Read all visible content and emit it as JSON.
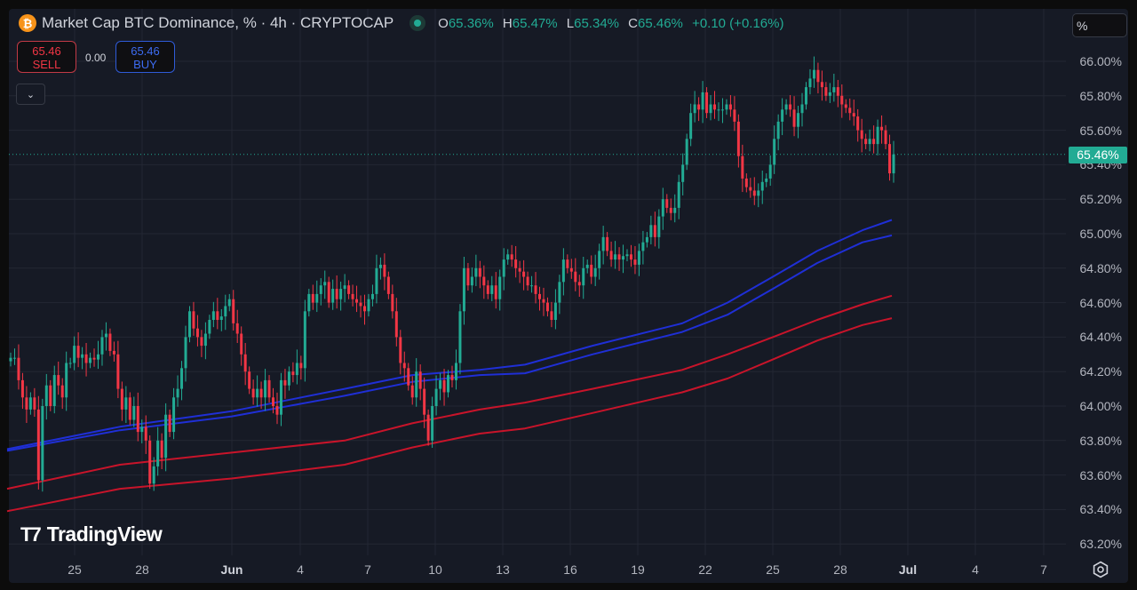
{
  "header": {
    "title": "Market Cap BTC Dominance, % · 4h · CRYPTOCAP",
    "symbol_icon": "bitcoin-icon",
    "status_icon": "market-open-dot",
    "ohlc": {
      "o_label": "O",
      "o": "65.36%",
      "h_label": "H",
      "h": "65.47%",
      "l_label": "L",
      "l": "65.34%",
      "c_label": "C",
      "c": "65.46%",
      "change": "+0.10 (+0.16%)"
    }
  },
  "trade": {
    "sell_price": "65.46",
    "sell_label": "SELL",
    "spread": "0.00",
    "buy_price": "65.46",
    "buy_label": "BUY"
  },
  "price_scale": {
    "unit": "%",
    "last_price_label": "65.46%"
  },
  "logo": {
    "text": "TradingView"
  },
  "colors": {
    "up": "#22ab94",
    "down": "#f23645",
    "ma_blue": "#1f2fd6",
    "ma_red": "#c8142a",
    "background": "#161a25"
  },
  "chart_data": {
    "type": "candlestick",
    "interval": "4h",
    "y_ticks": [
      "66.00%",
      "65.80%",
      "65.60%",
      "65.40%",
      "65.20%",
      "65.00%",
      "64.80%",
      "64.60%",
      "64.40%",
      "64.20%",
      "64.00%",
      "63.80%",
      "63.60%",
      "63.40%",
      "63.20%"
    ],
    "ylim": [
      63.2,
      66.0
    ],
    "x_ticks": [
      {
        "label": "25",
        "bold": false
      },
      {
        "label": "28",
        "bold": false
      },
      {
        "label": "Jun",
        "bold": true
      },
      {
        "label": "4",
        "bold": false
      },
      {
        "label": "7",
        "bold": false
      },
      {
        "label": "10",
        "bold": false
      },
      {
        "label": "13",
        "bold": false
      },
      {
        "label": "16",
        "bold": false
      },
      {
        "label": "19",
        "bold": false
      },
      {
        "label": "22",
        "bold": false
      },
      {
        "label": "25",
        "bold": false
      },
      {
        "label": "28",
        "bold": false
      },
      {
        "label": "Jul",
        "bold": true
      },
      {
        "label": "4",
        "bold": false
      },
      {
        "label": "7",
        "bold": false
      }
    ],
    "grid": true,
    "last_price": 65.46,
    "closes": [
      64.28,
      64.28,
      64.15,
      64.05,
      63.98,
      64.05,
      63.98,
      63.57,
      64.0,
      64.12,
      64.0,
      64.18,
      64.12,
      64.05,
      64.25,
      64.25,
      64.35,
      64.28,
      64.3,
      64.25,
      64.28,
      64.27,
      64.3,
      64.4,
      64.42,
      64.32,
      64.3,
      64.1,
      63.98,
      64.05,
      63.92,
      64.0,
      63.85,
      63.88,
      63.8,
      63.55,
      63.65,
      63.8,
      63.7,
      63.95,
      63.85,
      64.05,
      64.1,
      64.22,
      64.4,
      64.55,
      64.45,
      64.4,
      64.35,
      64.42,
      64.5,
      64.55,
      64.5,
      64.52,
      64.58,
      64.62,
      64.48,
      64.42,
      64.3,
      64.2,
      64.1,
      64.05,
      64.1,
      64.05,
      64.15,
      64.05,
      64.0,
      63.95,
      64.15,
      64.12,
      64.2,
      64.18,
      64.25,
      64.22,
      64.55,
      64.65,
      64.6,
      64.65,
      64.7,
      64.72,
      64.6,
      64.68,
      64.62,
      64.68,
      64.7,
      64.65,
      64.62,
      64.6,
      64.58,
      64.55,
      64.62,
      64.65,
      64.8,
      64.82,
      64.75,
      64.65,
      64.55,
      64.4,
      64.25,
      64.22,
      64.12,
      64.05,
      64.2,
      64.1,
      63.95,
      63.8,
      64.0,
      64.1,
      64.15,
      64.08,
      64.18,
      64.15,
      64.25,
      64.55,
      64.8,
      64.7,
      64.75,
      64.8,
      64.75,
      64.7,
      64.65,
      64.7,
      64.62,
      64.75,
      64.85,
      64.88,
      64.85,
      64.8,
      64.78,
      64.75,
      64.7,
      64.7,
      64.65,
      64.62,
      64.6,
      64.55,
      64.5,
      64.6,
      64.72,
      64.85,
      64.8,
      64.78,
      64.72,
      64.7,
      64.8,
      64.82,
      64.75,
      64.8,
      64.9,
      64.98,
      64.9,
      64.85,
      64.88,
      64.85,
      64.87,
      64.88,
      64.85,
      64.82,
      64.9,
      64.95,
      64.98,
      65.05,
      64.98,
      65.1,
      65.2,
      65.15,
      65.12,
      65.15,
      65.3,
      65.4,
      65.55,
      65.7,
      65.75,
      65.72,
      65.82,
      65.7,
      65.75,
      65.72,
      65.72,
      65.72,
      65.75,
      65.72,
      65.65,
      65.45,
      65.32,
      65.27,
      65.25,
      65.22,
      65.25,
      65.3,
      65.32,
      65.4,
      65.55,
      65.65,
      65.72,
      65.75,
      65.72,
      65.62,
      65.7,
      65.75,
      65.85,
      65.9,
      65.95,
      65.88,
      65.85,
      65.8,
      65.82,
      65.85,
      65.8,
      65.75,
      65.73,
      65.7,
      65.68,
      65.6,
      65.55,
      65.52,
      65.55,
      65.52,
      65.62,
      65.6,
      65.52,
      65.35,
      65.46
    ],
    "moving_averages": {
      "dates": [
        "May 22",
        "May 27",
        "Jun 1",
        "Jun 6",
        "Jun 9",
        "Jun 12",
        "Jun 14",
        "Jun 17",
        "Jun 21",
        "Jun 23",
        "Jun 25",
        "Jun 27",
        "Jun 29",
        "Jun 29 12:00"
      ],
      "series": [
        {
          "color": "#1f2fd6",
          "values": [
            63.75,
            63.88,
            63.97,
            64.1,
            64.18,
            64.21,
            64.24,
            64.35,
            64.48,
            64.6,
            64.75,
            64.9,
            65.02,
            65.08
          ]
        },
        {
          "color": "#1f2fd6",
          "values": [
            63.74,
            63.86,
            63.94,
            64.06,
            64.14,
            64.18,
            64.19,
            64.3,
            64.43,
            64.53,
            64.68,
            64.83,
            64.95,
            64.99
          ]
        },
        {
          "color": "#c8142a",
          "values": [
            63.52,
            63.66,
            63.73,
            63.8,
            63.9,
            63.98,
            64.02,
            64.1,
            64.21,
            64.3,
            64.4,
            64.5,
            64.59,
            64.64
          ]
        },
        {
          "color": "#c8142a",
          "values": [
            63.39,
            63.52,
            63.58,
            63.66,
            63.76,
            63.84,
            63.87,
            63.96,
            64.08,
            64.16,
            64.27,
            64.38,
            64.47,
            64.51
          ]
        }
      ]
    }
  }
}
